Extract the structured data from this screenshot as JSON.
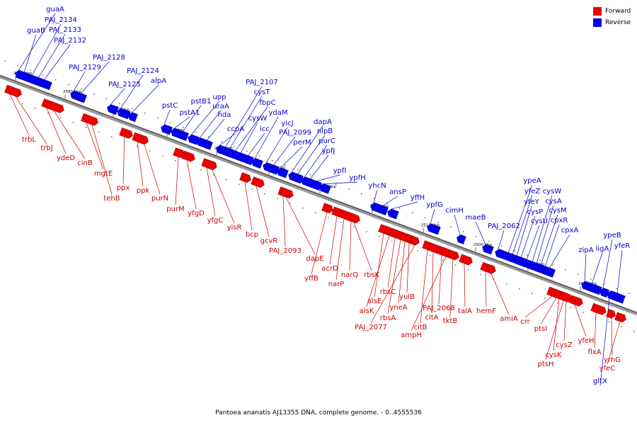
{
  "legend": {
    "forward": "Forward",
    "reverse": "Reverse",
    "forward_color": "#ee0000",
    "reverse_color": "#0000ee"
  },
  "caption": "Pantoea ananatis AJ13355 DNA, complete genome. - 0..4555536",
  "ticks": [
    "2590 kbp",
    "2580 kbp",
    "2570 kbp",
    "2560 kbp",
    "2550 kbp",
    "2540 kbp",
    "2530 kbp",
    "2520 kbp",
    "2510 kbp",
    "2500 kbp",
    "2490 kbp",
    "2480 kbp"
  ],
  "reverse_genes": [
    "guaA",
    "guaB",
    "PAJ_2134",
    "PAJ_2133",
    "PAJ_2132",
    "PAJ_2129",
    "PAJ_2128",
    "PAJ_2125",
    "PAJ_2124",
    "alpA",
    "pstC",
    "pstA1",
    "pstB1",
    "upp",
    "uraA",
    "hda",
    "ccpA",
    "PAJ_2107",
    "cysT",
    "fbpC",
    "cysW",
    "icc",
    "ydaM",
    "yicJ",
    "PAJ_2099",
    "perM",
    "dapA",
    "nlpB",
    "purC",
    "ypfJ",
    "ypfI",
    "ypfH",
    "yhcN",
    "ansP",
    "yffH",
    "ypfG",
    "cimH",
    "maeB",
    "PAJ_2062",
    "ypeA",
    "yfeZ",
    "yfeY",
    "cysP",
    "cysU",
    "cysW",
    "cysA",
    "cysM",
    "cpxR",
    "cpxA",
    "zipA",
    "ligA",
    "ypeB",
    "yfeR",
    "gltX"
  ],
  "forward_genes": [
    "trbL",
    "trbJ",
    "ydeD",
    "cinB",
    "mgtE",
    "tehB",
    "ppx",
    "ppk",
    "purN",
    "purM",
    "yfgD",
    "yfgC",
    "yisR",
    "bcp",
    "gcvR",
    "PAJ_2093",
    "dapE",
    "yffB",
    "acrD",
    "narP",
    "narQ",
    "rbsK",
    "alsE",
    "alsK",
    "rbsC",
    "rbsA",
    "yneA",
    "yulB",
    "PAJ_2077",
    "citB",
    "citA",
    "PAJ_2068",
    "ampH",
    "tktB",
    "talA",
    "hemF",
    "amiA",
    "crr",
    "ptsI",
    "cysK",
    "ptsH",
    "cysZ",
    "yfeH",
    "flxA",
    "yrhG",
    "yfeC"
  ]
}
